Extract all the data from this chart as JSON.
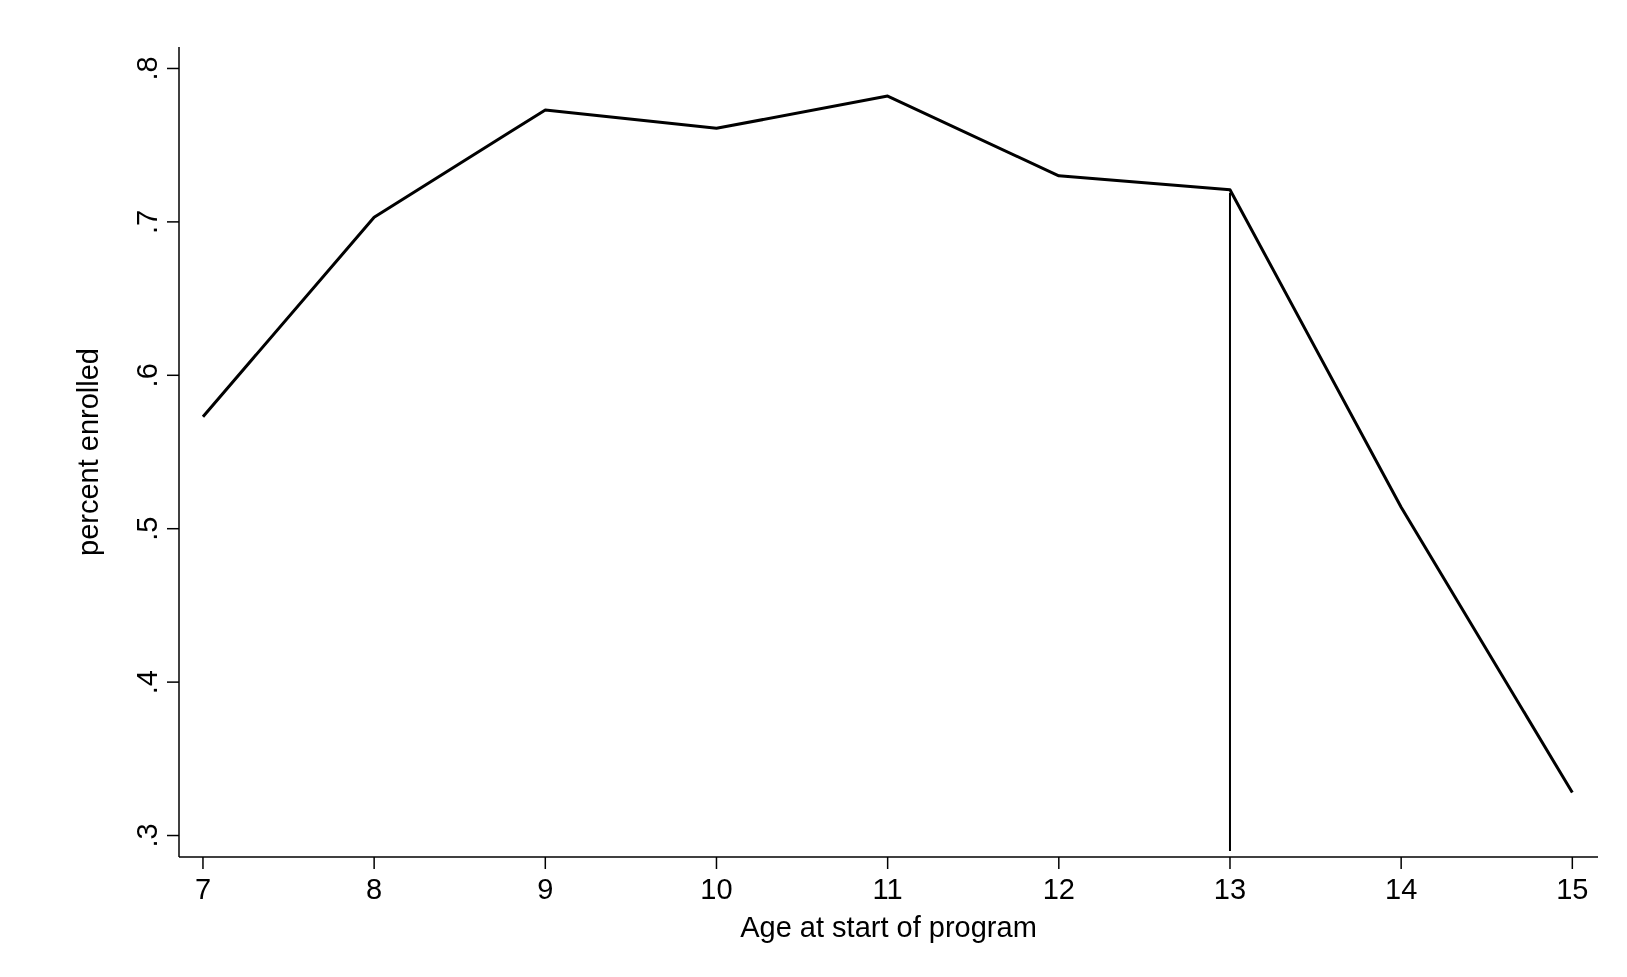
{
  "chart_data": {
    "type": "line",
    "xlabel": "Age at start of program",
    "ylabel": "percent enrolled",
    "xlim": [
      6.86,
      15.15
    ],
    "xticks": [
      7,
      8,
      9,
      10,
      11,
      12,
      13,
      14,
      15
    ],
    "ylim": [
      0.286,
      0.814
    ],
    "yticks": [
      {
        "value": 0.3,
        "label": ".3"
      },
      {
        "value": 0.4,
        "label": ".4"
      },
      {
        "value": 0.5,
        "label": ".5"
      },
      {
        "value": 0.6,
        "label": ".6"
      },
      {
        "value": 0.7,
        "label": ".7"
      },
      {
        "value": 0.8,
        "label": ".8"
      }
    ],
    "series": [
      {
        "color": "#000000",
        "x": [
          7,
          8,
          9,
          10,
          11,
          12,
          13,
          14,
          15
        ],
        "values": [
          0.573,
          0.703,
          0.773,
          0.761,
          0.782,
          0.73,
          0.721,
          0.514,
          0.328
        ]
      }
    ],
    "ref_lines": [
      {
        "axis": "x",
        "value": 13,
        "color": "#000000"
      }
    ]
  }
}
